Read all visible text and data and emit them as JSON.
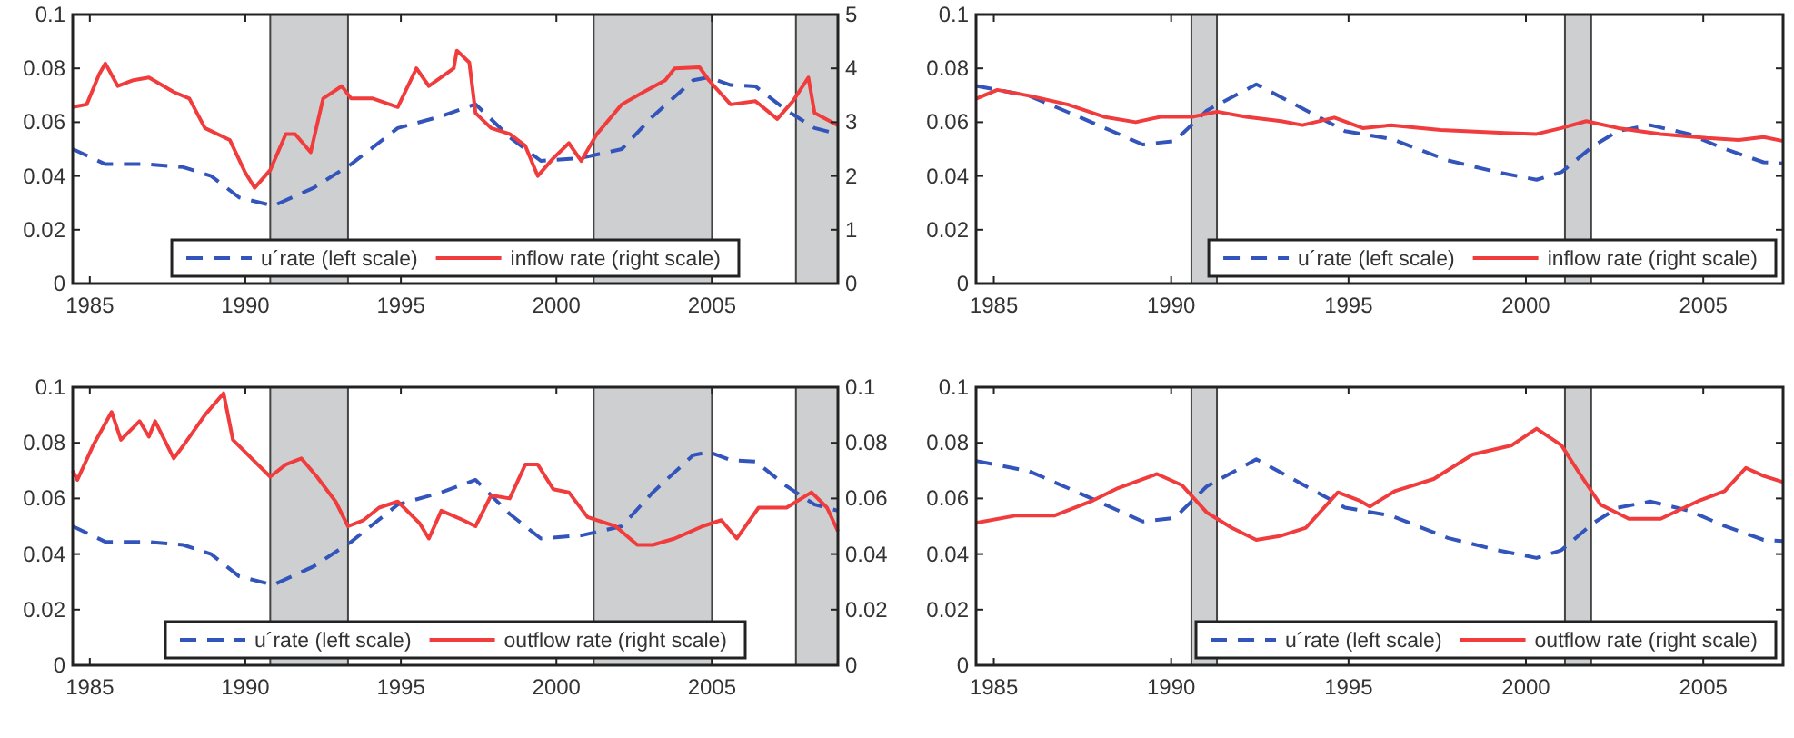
{
  "chart_data": [
    {
      "type": "line",
      "xlim": [
        1984.45,
        2009.05
      ],
      "xticks": [
        1985,
        1990,
        1995,
        2000,
        2005
      ],
      "ylim": [
        0,
        0.1
      ],
      "yticks": [
        0,
        0.02,
        0.04,
        0.06,
        0.08,
        0.1
      ],
      "y2lim": [
        0,
        5
      ],
      "y2ticks": [
        0,
        1,
        2,
        3,
        4,
        5
      ],
      "legend": "bottom",
      "grid": false,
      "bands": [
        {
          "axis": "x",
          "from": 1990.8,
          "to": 1993.3,
          "color": "#cdcfd1"
        },
        {
          "axis": "x",
          "from": 2001.2,
          "to": 2005.0,
          "color": "#cdcfd1"
        },
        {
          "axis": "x",
          "from": 2007.7,
          "to": 2009.05,
          "color": "#cdcfd1"
        }
      ],
      "series": [
        {
          "name": "u´rate (left scale)",
          "color": "#3355bb",
          "line_style": "dashed",
          "x": [
            1984.45,
            1985.5,
            1986.8,
            1988.0,
            1988.9,
            1989.8,
            1990.9,
            1992.2,
            1993.4,
            1994.9,
            1996.3,
            1997.4,
            1998.5,
            1999.5,
            2000.8,
            2002.1,
            2003.1,
            2004.4,
            2004.9,
            2005.6,
            2006.4,
            2007.4,
            2008.3,
            2009.05
          ],
          "values": [
            0.05,
            0.0444,
            0.0444,
            0.0433,
            0.04,
            0.032,
            0.0289,
            0.0356,
            0.0444,
            0.0578,
            0.0622,
            0.0667,
            0.0544,
            0.0456,
            0.0467,
            0.05,
            0.0622,
            0.0756,
            0.0767,
            0.0738,
            0.0733,
            0.0644,
            0.0578,
            0.0556
          ]
        },
        {
          "name": "inflow rate (right scale)",
          "color": "#f03c3c",
          "line_style": "solid",
          "axis": "y2",
          "x": [
            1984.45,
            1984.9,
            1985.3,
            1985.5,
            1985.9,
            1986.4,
            1986.9,
            1987.7,
            1988.2,
            1988.7,
            1989.5,
            1990.0,
            1990.3,
            1990.8,
            1991.3,
            1991.6,
            1992.1,
            1992.5,
            1993.1,
            1993.4,
            1994.1,
            1994.9,
            1995.5,
            1995.9,
            1996.7,
            1996.8,
            1997.2,
            1997.4,
            1997.9,
            1998.5,
            1999.0,
            1999.4,
            1999.9,
            2000.4,
            2000.8,
            2001.3,
            2002.1,
            2002.8,
            2003.5,
            2003.8,
            2004.6,
            2004.9,
            2005.6,
            2006.4,
            2007.1,
            2007.6,
            2008.1,
            2008.3,
            2009.05
          ],
          "values": [
            3.28,
            3.33,
            3.89,
            4.09,
            3.67,
            3.78,
            3.83,
            3.56,
            3.44,
            2.89,
            2.67,
            2.06,
            1.78,
            2.11,
            2.78,
            2.78,
            2.44,
            3.44,
            3.67,
            3.44,
            3.44,
            3.28,
            4.0,
            3.67,
            4.0,
            4.33,
            4.11,
            3.17,
            2.89,
            2.78,
            2.56,
            2.0,
            2.33,
            2.61,
            2.28,
            2.78,
            3.33,
            3.56,
            3.78,
            4.0,
            4.02,
            3.78,
            3.33,
            3.39,
            3.06,
            3.39,
            3.83,
            3.17,
            2.94
          ]
        }
      ]
    },
    {
      "type": "line",
      "xlim": [
        1984.5,
        2007.25
      ],
      "xticks": [
        1985,
        1990,
        1995,
        2000,
        2005
      ],
      "ylim": [
        0,
        0.1
      ],
      "yticks": [
        0,
        0.02,
        0.04,
        0.06,
        0.08,
        0.1
      ],
      "legend": "bottom right",
      "grid": false,
      "bands": [
        {
          "axis": "x",
          "from": 1990.57,
          "to": 1991.29,
          "color": "#cdcfd1"
        },
        {
          "axis": "x",
          "from": 2001.1,
          "to": 2001.84,
          "color": "#cdcfd1"
        }
      ],
      "series": [
        {
          "name": "u´rate (left scale)",
          "color": "#3355bb",
          "line_style": "dashed",
          "x": [
            1984.5,
            1986.0,
            1987.4,
            1989.2,
            1990.1,
            1991.0,
            1992.4,
            1993.5,
            1994.9,
            1996.2,
            1997.8,
            1999.2,
            2000.3,
            2001.0,
            2001.9,
            2002.6,
            2003.5,
            2004.6,
            2005.6,
            2006.7,
            2007.25
          ],
          "values": [
            0.0735,
            0.0698,
            0.062,
            0.0517,
            0.053,
            0.0643,
            0.0741,
            0.0665,
            0.0567,
            0.0538,
            0.0458,
            0.0414,
            0.0386,
            0.0414,
            0.0512,
            0.0567,
            0.0589,
            0.0556,
            0.0501,
            0.0451,
            0.0447
          ]
        },
        {
          "name": "inflow rate (right scale)",
          "color": "#f03c3c",
          "line_style": "solid",
          "x": [
            1984.5,
            1985.1,
            1986.0,
            1987.1,
            1988.1,
            1989.0,
            1989.7,
            1990.6,
            1991.3,
            1992.1,
            1993.1,
            1993.7,
            1994.6,
            1995.4,
            1996.2,
            1997.6,
            1999.4,
            2000.3,
            2001.0,
            2001.7,
            2002.6,
            2003.8,
            2005.1,
            2006.0,
            2006.7,
            2007.25
          ],
          "values": [
            0.0687,
            0.072,
            0.0698,
            0.0665,
            0.062,
            0.06,
            0.062,
            0.062,
            0.0639,
            0.062,
            0.0604,
            0.0589,
            0.0617,
            0.0578,
            0.0589,
            0.0571,
            0.056,
            0.0556,
            0.0578,
            0.0604,
            0.0578,
            0.0556,
            0.0541,
            0.0534,
            0.0545,
            0.053
          ]
        }
      ]
    },
    {
      "type": "line",
      "xlim": [
        1984.45,
        2009.05
      ],
      "xticks": [
        1985,
        1990,
        1995,
        2000,
        2005
      ],
      "ylim": [
        0,
        0.1
      ],
      "yticks": [
        0,
        0.02,
        0.04,
        0.06,
        0.08,
        0.1
      ],
      "y2lim": [
        0,
        0.1
      ],
      "y2ticks": [
        0,
        0.02,
        0.04,
        0.06,
        0.08,
        0.1
      ],
      "legend": "bottom",
      "grid": false,
      "bands": [
        {
          "axis": "x",
          "from": 1990.8,
          "to": 1993.3,
          "color": "#cdcfd1"
        },
        {
          "axis": "x",
          "from": 2001.2,
          "to": 2005.0,
          "color": "#cdcfd1"
        },
        {
          "axis": "x",
          "from": 2007.7,
          "to": 2009.05,
          "color": "#cdcfd1"
        }
      ],
      "series": [
        {
          "name": "u´rate (left scale)",
          "color": "#3355bb",
          "line_style": "dashed",
          "x": [
            1984.45,
            1985.5,
            1986.8,
            1988.0,
            1988.9,
            1989.8,
            1990.9,
            1992.2,
            1993.4,
            1994.9,
            1996.3,
            1997.4,
            1998.5,
            1999.5,
            2000.8,
            2002.1,
            2003.1,
            2004.4,
            2004.9,
            2005.6,
            2006.4,
            2007.4,
            2008.3,
            2009.05
          ],
          "values": [
            0.05,
            0.0444,
            0.0444,
            0.0433,
            0.04,
            0.032,
            0.0289,
            0.0356,
            0.0444,
            0.0578,
            0.0622,
            0.0667,
            0.0544,
            0.0456,
            0.0467,
            0.05,
            0.0622,
            0.0756,
            0.0767,
            0.0738,
            0.0733,
            0.0644,
            0.0578,
            0.0556
          ]
        },
        {
          "name": "outflow rate (right scale)",
          "color": "#f03c3c",
          "line_style": "solid",
          "axis": "y2",
          "x": [
            1984.45,
            1984.6,
            1985.1,
            1985.7,
            1986.0,
            1986.6,
            1986.9,
            1987.1,
            1987.7,
            1988.0,
            1988.7,
            1989.3,
            1989.6,
            1990.4,
            1990.8,
            1991.3,
            1991.8,
            1992.3,
            1992.9,
            1993.3,
            1993.8,
            1994.3,
            1994.9,
            1995.6,
            1995.9,
            1996.3,
            1997.0,
            1997.4,
            1997.9,
            1998.5,
            1999.0,
            1999.4,
            1999.9,
            2000.4,
            2001.0,
            2001.9,
            2002.6,
            2003.1,
            2003.8,
            2004.7,
            2005.3,
            2005.8,
            2006.5,
            2007.4,
            2008.2,
            2008.7,
            2009.05
          ],
          "values": [
            0.07,
            0.0667,
            0.0789,
            0.0911,
            0.0811,
            0.0878,
            0.0822,
            0.0878,
            0.0744,
            0.0789,
            0.09,
            0.0978,
            0.0811,
            0.0722,
            0.0678,
            0.0722,
            0.0744,
            0.0678,
            0.0589,
            0.05,
            0.0522,
            0.0567,
            0.0589,
            0.0511,
            0.0456,
            0.0556,
            0.0522,
            0.05,
            0.0611,
            0.06,
            0.0722,
            0.0722,
            0.0633,
            0.0622,
            0.0533,
            0.05,
            0.0433,
            0.0433,
            0.0456,
            0.05,
            0.0522,
            0.0456,
            0.0567,
            0.0567,
            0.0622,
            0.0567,
            0.0482
          ]
        }
      ]
    },
    {
      "type": "line",
      "xlim": [
        1984.5,
        2007.25
      ],
      "xticks": [
        1985,
        1990,
        1995,
        2000,
        2005
      ],
      "ylim": [
        0,
        0.1
      ],
      "yticks": [
        0,
        0.02,
        0.04,
        0.06,
        0.08,
        0.1
      ],
      "legend": "bottom right",
      "grid": false,
      "bands": [
        {
          "axis": "x",
          "from": 1990.57,
          "to": 1991.29,
          "color": "#cdcfd1"
        },
        {
          "axis": "x",
          "from": 2001.1,
          "to": 2001.84,
          "color": "#cdcfd1"
        }
      ],
      "series": [
        {
          "name": "u´rate (left scale)",
          "color": "#3355bb",
          "line_style": "dashed",
          "x": [
            1984.5,
            1986.0,
            1987.4,
            1989.2,
            1990.1,
            1991.0,
            1992.4,
            1993.5,
            1994.9,
            1996.2,
            1997.8,
            1999.2,
            2000.3,
            2001.0,
            2001.9,
            2002.6,
            2003.5,
            2004.6,
            2005.6,
            2006.7,
            2007.25
          ],
          "values": [
            0.0735,
            0.0698,
            0.062,
            0.0517,
            0.053,
            0.0643,
            0.0741,
            0.0665,
            0.0567,
            0.0538,
            0.0458,
            0.0414,
            0.0386,
            0.0414,
            0.0512,
            0.0567,
            0.0589,
            0.0556,
            0.0501,
            0.0451,
            0.0447
          ]
        },
        {
          "name": "outflow rate (right scale)",
          "color": "#f03c3c",
          "line_style": "solid",
          "x": [
            1984.5,
            1985.6,
            1986.7,
            1987.8,
            1988.5,
            1989.6,
            1990.3,
            1991.0,
            1991.7,
            1992.4,
            1993.1,
            1993.8,
            1994.7,
            1995.3,
            1995.6,
            1996.3,
            1997.4,
            1998.5,
            1999.6,
            2000.3,
            2001.0,
            2001.5,
            2002.1,
            2002.9,
            2003.8,
            2004.9,
            2005.6,
            2006.2,
            2006.7,
            2007.25
          ],
          "values": [
            0.0512,
            0.0538,
            0.0538,
            0.0593,
            0.0637,
            0.0688,
            0.0648,
            0.055,
            0.0495,
            0.0451,
            0.0466,
            0.0495,
            0.0622,
            0.0593,
            0.0571,
            0.0626,
            0.067,
            0.0758,
            0.0791,
            0.0851,
            0.0791,
            0.0692,
            0.0578,
            0.0527,
            0.0527,
            0.0593,
            0.0626,
            0.071,
            0.0681,
            0.0659
          ]
        }
      ]
    }
  ]
}
